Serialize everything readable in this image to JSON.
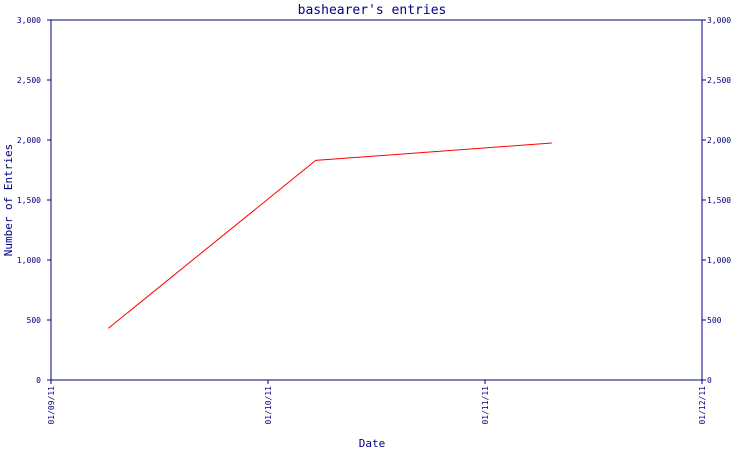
{
  "chart_data": {
    "type": "line",
    "title": "bashearer's entries",
    "xlabel": "Date",
    "ylabel": "Number of Entries",
    "x_tick_labels": [
      "01/09/11",
      "01/10/11",
      "01/11/11",
      "01/12/11"
    ],
    "y_tick_labels": [
      "0",
      "500",
      "1,000",
      "1,500",
      "2,000",
      "2,500",
      "3,000"
    ],
    "y_ticks": [
      0,
      500,
      1000,
      1500,
      2000,
      2500,
      3000
    ],
    "ylim": [
      0,
      3000
    ],
    "xlim": [
      "2011-09-01",
      "2011-12-01"
    ],
    "grid": false,
    "series": [
      {
        "color": "#ff0000",
        "x": [
          "2011-09-09",
          "2011-10-08",
          "2011-11-10"
        ],
        "y": [
          430,
          1830,
          1975
        ]
      }
    ],
    "colors": {
      "axis": "#000080",
      "text": "#000080",
      "line": "#ff0000",
      "background": "#ffffff"
    }
  }
}
